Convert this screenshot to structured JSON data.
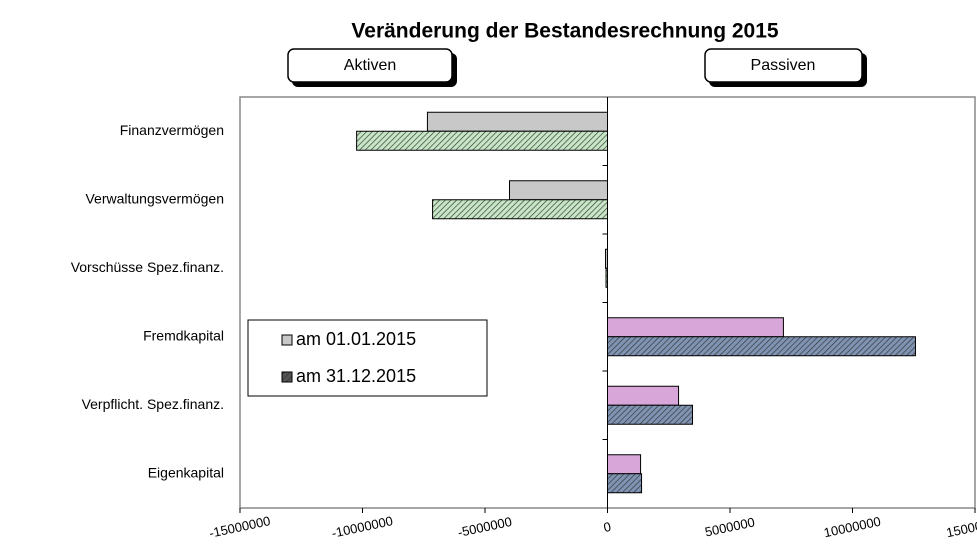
{
  "chart_data": {
    "type": "hbar",
    "title": "Veränderung der Bestandesrechnung 2015",
    "annotations": [
      "Aktiven",
      "Passiven"
    ],
    "categories": [
      "Finanzvermögen",
      "Verwaltungsvermögen",
      "Vorschüsse Spez.finanz.",
      "Fremdkapital",
      "Verpflicht. Spez.finanz.",
      "Eigenkapital"
    ],
    "series": [
      {
        "name": "am 01.01.2015",
        "color": "#d9a6d9",
        "negative_color": "#c8c8c8",
        "hatch": false,
        "values": [
          -7350000,
          -4000000,
          -80000,
          7180000,
          2900000,
          1350000
        ]
      },
      {
        "name": "am 31.12.2015",
        "color": "#7f93b3",
        "negative_color": "#c6e6c6",
        "hatch": true,
        "values": [
          -10240000,
          -7140000,
          -60000,
          12570000,
          3470000,
          1390000
        ]
      }
    ],
    "xlim": [
      -15000000,
      15000000
    ],
    "xticks": [
      -15000000,
      -10000000,
      -5000000,
      0,
      5000000,
      10000000,
      15000000
    ],
    "grid": false,
    "legend": "left"
  }
}
